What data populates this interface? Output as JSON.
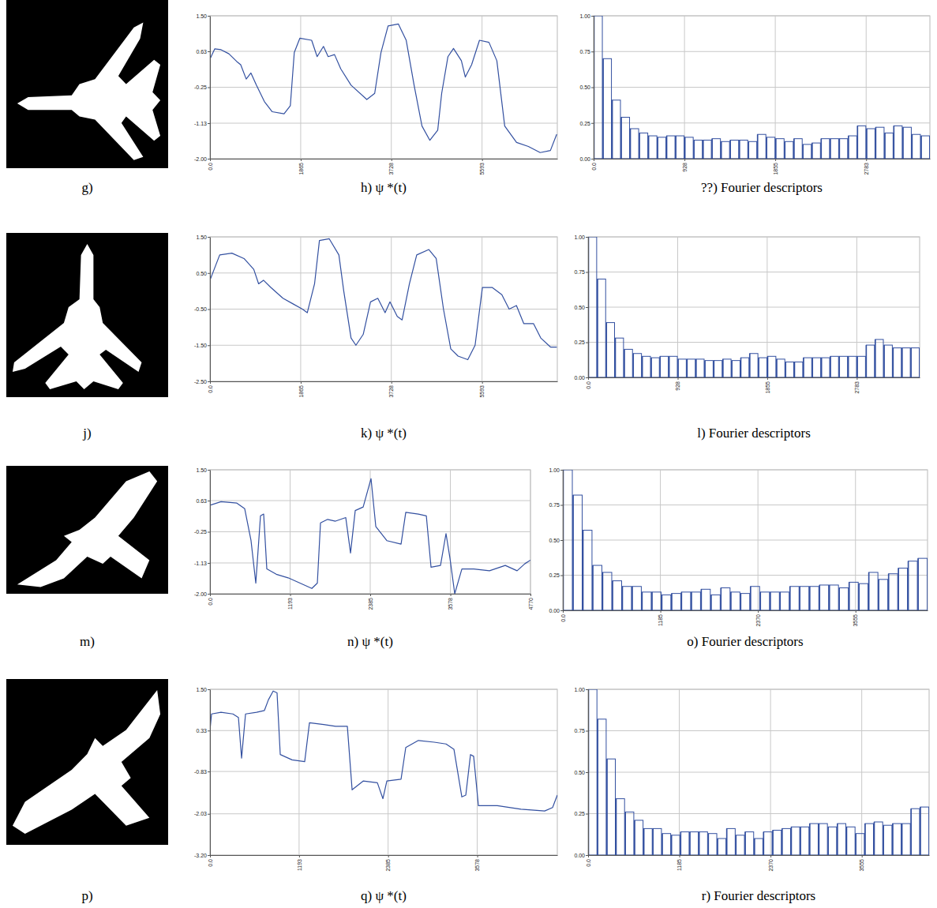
{
  "chart_data": [
    {
      "type": "line",
      "title": "h) ψ *(t)",
      "color": "#3350a0",
      "grid": true,
      "xlim": [
        0,
        7140
      ],
      "ylim": [
        -2,
        1.5
      ],
      "xticks": [
        {
          "value": 0,
          "label": "0.0"
        },
        1865,
        3728,
        5593
      ],
      "yticks": [
        {
          "value": 1.5,
          "label": "1.50"
        },
        0.63,
        -0.25,
        -1.13,
        {
          "value": -2,
          "label": "-2.00"
        }
      ],
      "x": [
        0,
        97,
        227,
        389,
        551,
        632,
        745,
        842,
        956,
        1118,
        1280,
        1523,
        1652,
        1733,
        1847,
        2090,
        2203,
        2333,
        2430,
        2560,
        2689,
        2900,
        3224,
        3386,
        3515,
        3661,
        3872,
        4034,
        4196,
        4358,
        4520,
        4682,
        4763,
        4892,
        5006,
        5168,
        5249,
        5378,
        5540,
        5735,
        5897,
        6059,
        6302,
        6545,
        6788,
        6998,
        7128
      ],
      "values": [
        0.44,
        0.69,
        0.67,
        0.57,
        0.38,
        0.3,
        -0.05,
        0.1,
        -0.2,
        -0.6,
        -0.85,
        -0.9,
        -0.7,
        0.6,
        0.95,
        0.9,
        0.5,
        0.75,
        0.5,
        0.55,
        0.2,
        -0.2,
        -0.55,
        -0.4,
        0.6,
        1.25,
        1.3,
        0.9,
        -0.2,
        -1.2,
        -1.55,
        -1.3,
        -0.4,
        0.5,
        0.7,
        0.4,
        0,
        0.3,
        0.9,
        0.85,
        0.4,
        -1.2,
        -1.6,
        -1.7,
        -1.85,
        -1.8,
        -1.4
      ]
    },
    {
      "type": "bar",
      "title": "??) Fourier descriptors",
      "color": "#3350a0",
      "grid": true,
      "xlim": [
        0,
        3434
      ],
      "ylim": [
        0,
        1
      ],
      "xticks": [
        {
          "value": 0,
          "label": "0.0"
        },
        928,
        1855,
        2783
      ],
      "yticks": [
        {
          "value": 0,
          "label": "0.00"
        },
        0.25,
        {
          "value": 0.5,
          "label": "0.50"
        },
        0.75,
        {
          "value": 1,
          "label": "1.00"
        }
      ],
      "x": [
        0,
        93,
        186,
        278,
        371,
        464,
        557,
        650,
        742,
        835,
        928,
        1021,
        1114,
        1206,
        1299,
        1392,
        1485,
        1578,
        1670,
        1763,
        1856,
        1949,
        2042,
        2134,
        2227,
        2320,
        2413,
        2506,
        2598,
        2691,
        2784,
        2877,
        2970,
        3062,
        3155,
        3248,
        3341
      ],
      "values": [
        1.0,
        0.7,
        0.41,
        0.29,
        0.21,
        0.18,
        0.16,
        0.15,
        0.16,
        0.16,
        0.15,
        0.13,
        0.13,
        0.14,
        0.12,
        0.13,
        0.13,
        0.12,
        0.17,
        0.15,
        0.14,
        0.12,
        0.14,
        0.1,
        0.11,
        0.14,
        0.14,
        0.14,
        0.16,
        0.23,
        0.21,
        0.22,
        0.18,
        0.23,
        0.22,
        0.17,
        0.16
      ]
    },
    {
      "type": "line",
      "title": "k) ψ *(t)",
      "color": "#3350a0",
      "grid": true,
      "xlim": [
        0,
        7140
      ],
      "ylim": [
        -2.5,
        1.5
      ],
      "xticks": [
        {
          "value": 0,
          "label": "0.0"
        },
        1865,
        3728,
        5593
      ],
      "yticks": [
        {
          "value": 1.5,
          "label": "1.50"
        },
        {
          "value": 0.5,
          "label": "0.50"
        },
        {
          "value": -0.5,
          "label": "-0.50"
        },
        {
          "value": -1.5,
          "label": "-1.50"
        },
        {
          "value": -2.5,
          "label": "-2.50"
        }
      ],
      "x": [
        0,
        200,
        450,
        700,
        900,
        1000,
        1100,
        1250,
        1500,
        1700,
        1900,
        2000,
        2150,
        2250,
        2450,
        2650,
        2750,
        2900,
        3000,
        3150,
        3300,
        3450,
        3600,
        3700,
        3850,
        3950,
        4100,
        4250,
        4500,
        4650,
        4800,
        4950,
        5100,
        5300,
        5450,
        5600,
        5800,
        6000,
        6150,
        6300,
        6450,
        6650,
        6800,
        7000,
        7130
      ],
      "values": [
        0.3,
        1.0,
        1.05,
        0.9,
        0.6,
        0.2,
        0.3,
        0.1,
        -0.2,
        -0.35,
        -0.5,
        -0.6,
        0.2,
        1.4,
        1.45,
        1.0,
        0,
        -1.3,
        -1.5,
        -1.2,
        -0.3,
        -0.2,
        -0.6,
        -0.3,
        -0.7,
        -0.8,
        0.2,
        1.0,
        1.15,
        0.9,
        -0.5,
        -1.6,
        -1.8,
        -1.9,
        -1.5,
        0.1,
        0.1,
        -0.1,
        -0.5,
        -0.4,
        -0.9,
        -0.9,
        -1.3,
        -1.55,
        -1.55
      ]
    },
    {
      "type": "bar",
      "title": "l) Fourier descriptors",
      "color": "#3350a0",
      "grid": true,
      "xlim": [
        0,
        3434
      ],
      "ylim": [
        0,
        1
      ],
      "xticks": [
        {
          "value": 0,
          "label": "0.0"
        },
        928,
        1855,
        2783
      ],
      "yticks": [
        {
          "value": 0,
          "label": "0.00"
        },
        0.25,
        {
          "value": 0.5,
          "label": "0.50"
        },
        0.75,
        {
          "value": 1,
          "label": "1.00"
        }
      ],
      "x": [
        0,
        93,
        186,
        278,
        371,
        464,
        557,
        650,
        742,
        835,
        928,
        1021,
        1114,
        1206,
        1299,
        1392,
        1485,
        1578,
        1670,
        1763,
        1856,
        1949,
        2042,
        2134,
        2227,
        2320,
        2413,
        2506,
        2598,
        2691,
        2784,
        2877,
        2970,
        3062,
        3155,
        3248,
        3341
      ],
      "values": [
        1.0,
        0.7,
        0.39,
        0.28,
        0.2,
        0.17,
        0.15,
        0.14,
        0.15,
        0.15,
        0.13,
        0.13,
        0.13,
        0.12,
        0.12,
        0.13,
        0.12,
        0.14,
        0.17,
        0.14,
        0.15,
        0.13,
        0.11,
        0.11,
        0.14,
        0.14,
        0.14,
        0.15,
        0.15,
        0.15,
        0.15,
        0.23,
        0.27,
        0.23,
        0.21,
        0.21,
        0.21
      ]
    },
    {
      "type": "line",
      "title": "n) ψ *(t)",
      "color": "#3350a0",
      "grid": true,
      "xlim": [
        0,
        4770
      ],
      "ylim": [
        -2,
        1.5
      ],
      "xticks": [
        {
          "value": 0,
          "label": "0.0"
        },
        1193,
        2385,
        3578,
        4770
      ],
      "yticks": [
        {
          "value": 1.5,
          "label": "1.50"
        },
        0.63,
        -0.25,
        -1.13,
        {
          "value": -2,
          "label": "-2.00"
        }
      ],
      "x": [
        0,
        165,
        400,
        517,
        611,
        682,
        752,
        799,
        846,
        987,
        1163,
        1340,
        1516,
        1598,
        1645,
        1751,
        1868,
        2021,
        2092,
        2162,
        2280,
        2397,
        2468,
        2632,
        2844,
        2914,
        3102,
        3220,
        3290,
        3431,
        3513,
        3572,
        3643,
        3749,
        3925,
        4160,
        4395,
        4571,
        4688,
        4770
      ],
      "values": [
        0.5,
        0.6,
        0.56,
        0.4,
        -0.5,
        -1.7,
        0.2,
        0.25,
        -1.3,
        -1.45,
        -1.55,
        -1.7,
        -1.85,
        -1.7,
        0,
        0.1,
        0.05,
        0.15,
        -0.85,
        0.35,
        0.45,
        1.25,
        -0.1,
        -0.5,
        -0.6,
        0.3,
        0.25,
        0.2,
        -1.25,
        -1.2,
        -0.3,
        -1.0,
        -2.0,
        -1.3,
        -1.3,
        -1.35,
        -1.2,
        -1.35,
        -1.15,
        -1.05
      ]
    },
    {
      "type": "bar",
      "title": "o) Fourier descriptors",
      "color": "#3350a0",
      "grid": true,
      "xlim": [
        0,
        4430
      ],
      "ylim": [
        0,
        1
      ],
      "xticks": [
        {
          "value": 0,
          "label": "0.0"
        },
        1185,
        2370,
        3555
      ],
      "yticks": [
        {
          "value": 0,
          "label": "0.00"
        },
        0.25,
        {
          "value": 0.5,
          "label": "0.50"
        },
        0.75,
        {
          "value": 1,
          "label": "1.00"
        }
      ],
      "x": [
        0,
        120,
        240,
        359,
        479,
        599,
        719,
        838,
        958,
        1078,
        1198,
        1317,
        1437,
        1557,
        1677,
        1796,
        1916,
        2036,
        2156,
        2275,
        2395,
        2515,
        2635,
        2754,
        2874,
        2994,
        3114,
        3233,
        3353,
        3473,
        3593,
        3712,
        3832,
        3952,
        4072,
        4191,
        4311
      ],
      "values": [
        1.0,
        0.82,
        0.57,
        0.32,
        0.27,
        0.21,
        0.17,
        0.17,
        0.13,
        0.13,
        0.11,
        0.12,
        0.13,
        0.13,
        0.15,
        0.11,
        0.16,
        0.13,
        0.12,
        0.17,
        0.13,
        0.13,
        0.13,
        0.17,
        0.17,
        0.17,
        0.18,
        0.18,
        0.16,
        0.2,
        0.19,
        0.27,
        0.22,
        0.26,
        0.3,
        0.35,
        0.37
      ]
    },
    {
      "type": "line",
      "title": "q) ψ *(t)",
      "color": "#3350a0",
      "grid": true,
      "xlim": [
        0,
        4650
      ],
      "ylim": [
        -3.2,
        1.5
      ],
      "xticks": [
        {
          "value": 0,
          "label": "0.0"
        },
        1193,
        2385,
        3578
      ],
      "yticks": [
        {
          "value": 1.5,
          "label": "1.50"
        },
        0.33,
        -0.83,
        -2.03,
        {
          "value": -3.2,
          "label": "-3.20"
        }
      ],
      "x": [
        0,
        21,
        148,
        307,
        381,
        423,
        476,
        624,
        729,
        782,
        846,
        898,
        941,
        1099,
        1268,
        1332,
        1522,
        1681,
        1839,
        1903,
        2051,
        2241,
        2315,
        2368,
        2558,
        2621,
        2790,
        3002,
        3160,
        3266,
        3372,
        3425,
        3488,
        3530,
        3594,
        3847,
        4164,
        4481,
        4587,
        4650
      ],
      "values": [
        0.33,
        0.8,
        0.85,
        0.8,
        0.7,
        -0.45,
        0.8,
        0.85,
        0.9,
        1.2,
        1.45,
        1.4,
        -0.35,
        -0.5,
        -0.55,
        0.55,
        0.5,
        0.45,
        0.45,
        -1.35,
        -1.1,
        -1.15,
        -1.6,
        -1.1,
        -1.05,
        -0.15,
        0.05,
        0,
        -0.05,
        -0.2,
        -1.55,
        -1.5,
        -0.35,
        -0.4,
        -1.8,
        -1.8,
        -1.9,
        -1.95,
        -1.85,
        -1.5
      ]
    },
    {
      "type": "bar",
      "title": "r) Fourier descriptors",
      "color": "#3350a0",
      "grid": true,
      "xlim": [
        0,
        4430
      ],
      "ylim": [
        0,
        1
      ],
      "xticks": [
        {
          "value": 0,
          "label": "0.0"
        },
        1185,
        2370,
        3555
      ],
      "yticks": [
        {
          "value": 0,
          "label": "0.00"
        },
        0.25,
        {
          "value": 0.5,
          "label": "0.50"
        },
        0.75,
        {
          "value": 1,
          "label": "1.00"
        }
      ],
      "x": [
        0,
        120,
        240,
        359,
        479,
        599,
        719,
        838,
        958,
        1078,
        1198,
        1317,
        1437,
        1557,
        1677,
        1796,
        1916,
        2036,
        2156,
        2275,
        2395,
        2515,
        2635,
        2754,
        2874,
        2994,
        3114,
        3233,
        3353,
        3473,
        3593,
        3712,
        3832,
        3952,
        4072,
        4191,
        4311
      ],
      "values": [
        1.0,
        0.82,
        0.58,
        0.34,
        0.26,
        0.21,
        0.16,
        0.16,
        0.13,
        0.12,
        0.14,
        0.14,
        0.14,
        0.13,
        0.1,
        0.16,
        0.12,
        0.14,
        0.1,
        0.14,
        0.15,
        0.16,
        0.17,
        0.17,
        0.19,
        0.19,
        0.17,
        0.19,
        0.17,
        0.13,
        0.19,
        0.2,
        0.18,
        0.19,
        0.19,
        0.28,
        0.29
      ]
    }
  ],
  "images": [
    {
      "caption": "g)"
    },
    {
      "caption": "j)"
    },
    {
      "caption": "m)"
    },
    {
      "caption": "p)"
    }
  ]
}
